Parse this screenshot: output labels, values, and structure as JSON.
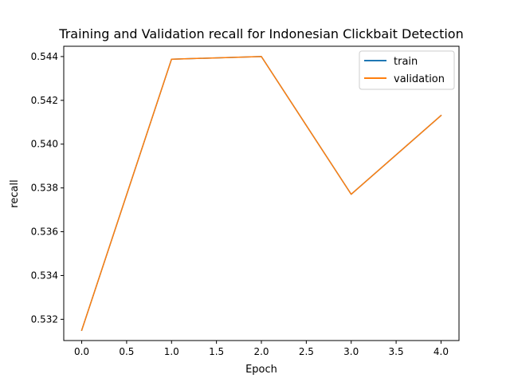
{
  "chart_data": {
    "type": "line",
    "title": "Training and Validation recall for Indonesian Clickbait Detection",
    "xlabel": "Epoch",
    "ylabel": "recall",
    "x": [
      0,
      1,
      2,
      3,
      4
    ],
    "series": [
      {
        "name": "train",
        "color": "#1f77b4",
        "values": [
          0.5315,
          0.54388,
          0.544,
          0.53771,
          0.54131
        ]
      },
      {
        "name": "validation",
        "color": "#ff7f0e",
        "values": [
          0.5315,
          0.54388,
          0.544,
          0.53771,
          0.54131
        ]
      }
    ],
    "xlim": [
      -0.2,
      4.2
    ],
    "ylim": [
      0.53103,
      0.54447
    ],
    "xticks": [
      0.0,
      0.5,
      1.0,
      1.5,
      2.0,
      2.5,
      3.0,
      3.5,
      4.0
    ],
    "xtick_labels": [
      "0.0",
      "0.5",
      "1.0",
      "1.5",
      "2.0",
      "2.5",
      "3.0",
      "3.5",
      "4.0"
    ],
    "yticks": [
      0.532,
      0.534,
      0.536,
      0.538,
      0.54,
      0.542,
      0.544
    ],
    "ytick_labels": [
      "0.532",
      "0.534",
      "0.536",
      "0.538",
      "0.540",
      "0.542",
      "0.544"
    ],
    "grid": false,
    "legend_position": "top-right"
  }
}
